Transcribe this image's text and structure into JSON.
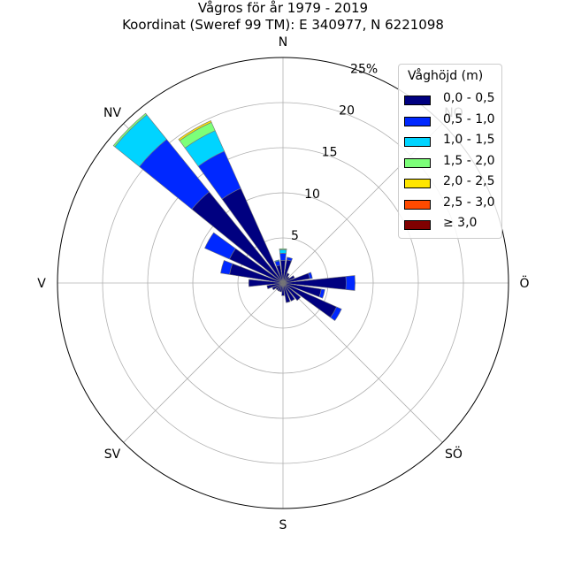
{
  "chart_data": {
    "type": "windrose",
    "title": "Vågros för år 1979 - 2019",
    "subtitle": "Koordinat (Sweref 99 TM): E 340977, N 6221098",
    "directions": [
      "N",
      "NO",
      "Ö",
      "SÖ",
      "S",
      "SV",
      "V",
      "NV"
    ],
    "radial_ticks": [
      "5",
      "10",
      "15",
      "20",
      "25%"
    ],
    "rmax": 25,
    "legend": {
      "title": "Våghöjd (m)",
      "items": [
        {
          "label": "0,0 - 0,5",
          "color": "#000080"
        },
        {
          "label": "0,5 - 1,0",
          "color": "#0028ff"
        },
        {
          "label": "1,0 - 1,5",
          "color": "#00d4ff"
        },
        {
          "label": "1,5 - 2,0",
          "color": "#7cff79"
        },
        {
          "label": "2,0 - 2,5",
          "color": "#ffe600"
        },
        {
          "label": "2,5 - 3,0",
          "color": "#ff4a00"
        },
        {
          "label": "≥ 3,0",
          "color": "#800000"
        }
      ]
    },
    "sectors": [
      {
        "angle": 0,
        "values": [
          2.5,
          0.8,
          0.4,
          0.1,
          0,
          0,
          0
        ]
      },
      {
        "angle": 15,
        "values": [
          2.6,
          0.3,
          0,
          0,
          0,
          0,
          0
        ]
      },
      {
        "angle": 30,
        "values": [
          1.2,
          0,
          0,
          0,
          0,
          0,
          0
        ]
      },
      {
        "angle": 45,
        "values": [
          0.9,
          0,
          0,
          0,
          0,
          0,
          0
        ]
      },
      {
        "angle": 60,
        "values": [
          1.4,
          0,
          0,
          0,
          0,
          0,
          0
        ]
      },
      {
        "angle": 75,
        "values": [
          3.0,
          0.3,
          0,
          0,
          0,
          0,
          0
        ]
      },
      {
        "angle": 90,
        "values": [
          7.0,
          1.0,
          0,
          0,
          0,
          0,
          0
        ]
      },
      {
        "angle": 105,
        "values": [
          4.3,
          0.4,
          0,
          0,
          0,
          0,
          0
        ]
      },
      {
        "angle": 120,
        "values": [
          6.5,
          0.6,
          0,
          0,
          0,
          0,
          0
        ]
      },
      {
        "angle": 135,
        "values": [
          2.5,
          0,
          0,
          0,
          0,
          0,
          0
        ]
      },
      {
        "angle": 150,
        "values": [
          2.2,
          0,
          0,
          0,
          0,
          0,
          0
        ]
      },
      {
        "angle": 165,
        "values": [
          2.2,
          0,
          0,
          0,
          0,
          0,
          0
        ]
      },
      {
        "angle": 180,
        "values": [
          1.4,
          0,
          0,
          0,
          0,
          0,
          0
        ]
      },
      {
        "angle": 195,
        "values": [
          1.0,
          0,
          0,
          0,
          0,
          0,
          0
        ]
      },
      {
        "angle": 210,
        "values": [
          1.0,
          0,
          0,
          0,
          0,
          0,
          0
        ]
      },
      {
        "angle": 225,
        "values": [
          1.0,
          0,
          0,
          0,
          0,
          0,
          0
        ]
      },
      {
        "angle": 240,
        "values": [
          1.3,
          0,
          0,
          0,
          0,
          0,
          0
        ]
      },
      {
        "angle": 255,
        "values": [
          1.8,
          0,
          0,
          0,
          0,
          0,
          0
        ]
      },
      {
        "angle": 270,
        "values": [
          3.8,
          0,
          0,
          0,
          0,
          0,
          0
        ]
      },
      {
        "angle": 285,
        "values": [
          6.0,
          1.0,
          0,
          0,
          0,
          0,
          0
        ]
      },
      {
        "angle": 300,
        "values": [
          6.5,
          3.0,
          0,
          0,
          0,
          0,
          0
        ]
      },
      {
        "angle": 315,
        "values": [
          13.0,
          7.5,
          3.5,
          0.2,
          0,
          0,
          0
        ]
      },
      {
        "angle": 330,
        "values": [
          11.5,
          4.5,
          2.5,
          1.0,
          0.2,
          0,
          0
        ]
      },
      {
        "angle": 345,
        "values": [
          2.0,
          0.5,
          0.1,
          0,
          0,
          0,
          0
        ]
      }
    ]
  }
}
